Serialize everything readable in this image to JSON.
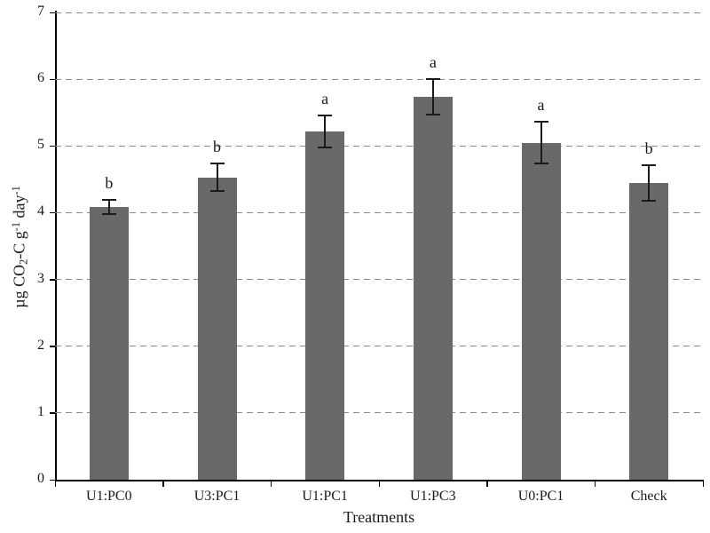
{
  "chart_data": {
    "type": "bar",
    "title": "",
    "xlabel": "Treatments",
    "ylabel": "ug CO2-C g-1 day-1",
    "ylabel_parts": {
      "t1": "µg CO",
      "sub1": "2",
      "t2": "-C g",
      "sup1": "-1",
      "t3": " day",
      "sup2": "-1"
    },
    "categories": [
      "U1:PC0",
      "U3:PC1",
      "U1:PC1",
      "U1:PC3",
      "U0:PC1",
      "Check"
    ],
    "values": [
      4.08,
      4.53,
      5.22,
      5.73,
      5.05,
      4.45
    ],
    "errors": [
      0.12,
      0.22,
      0.25,
      0.28,
      0.32,
      0.28
    ],
    "letters": [
      "b",
      "b",
      "a",
      "a",
      "a",
      "b"
    ],
    "ylim": [
      0,
      7
    ],
    "yticks": [
      0,
      1,
      2,
      3,
      4,
      5,
      6,
      7
    ],
    "grid": "horizontal-dashed",
    "legend": "none",
    "bar_color": "#696969",
    "grid_color": "#8a8a8a",
    "axis_color": "#000000"
  }
}
